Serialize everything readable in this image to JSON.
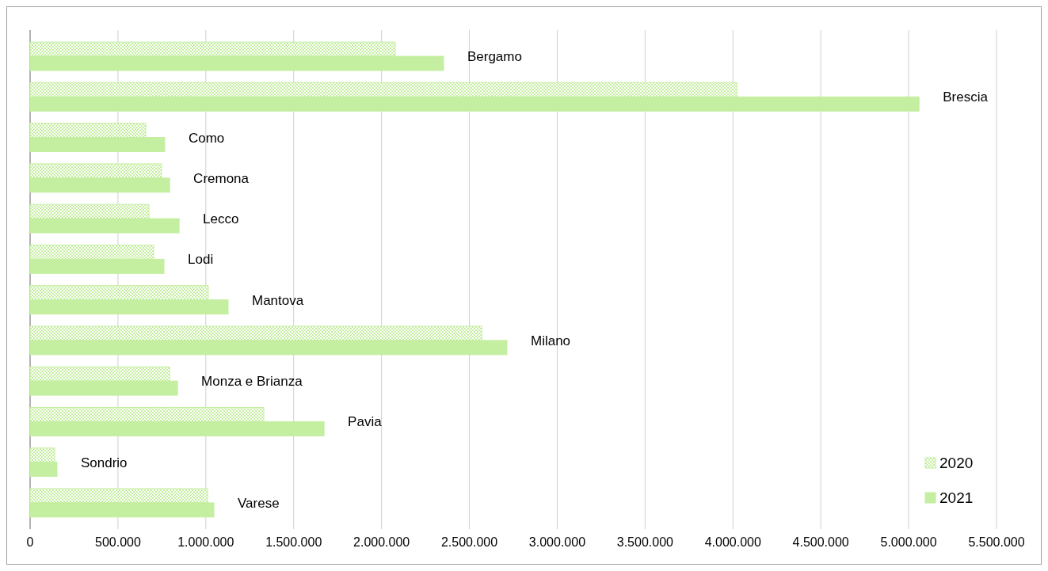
{
  "chart_data": {
    "type": "bar",
    "orientation": "horizontal",
    "categories": [
      "Bergamo",
      "Brescia",
      "Como",
      "Cremona",
      "Lecco",
      "Lodi",
      "Mantova",
      "Milano",
      "Monza e Brianza",
      "Pavia",
      "Sondrio",
      "Varese"
    ],
    "series": [
      {
        "name": "2020",
        "color": "#c4eea0",
        "values": [
          2078000,
          4022000,
          658000,
          748000,
          676000,
          703000,
          1014000,
          2570000,
          794000,
          1330000,
          140000,
          1010000
        ]
      },
      {
        "name": "2021",
        "color": "#c4eea0",
        "values": [
          2353000,
          5059000,
          766000,
          794000,
          848000,
          762000,
          1127000,
          2714000,
          839000,
          1673000,
          153000,
          1046000
        ]
      }
    ],
    "xlim": [
      0,
      5500000
    ],
    "xticks": [
      0,
      {
        "value": 500000,
        "label": "500.000"
      },
      {
        "value": 1000000,
        "label": "1.000.000"
      },
      {
        "value": 1500000,
        "label": "1.500.000"
      },
      {
        "value": 2000000,
        "label": "2.000.000"
      },
      {
        "value": 2500000,
        "label": "2.500.000"
      },
      {
        "value": 3000000,
        "label": "3.000.000"
      },
      {
        "value": 3500000,
        "label": "3.500.000"
      },
      {
        "value": 4000000,
        "label": "4.000.000"
      },
      {
        "value": 4500000,
        "label": "4.500.000"
      },
      {
        "value": 5000000,
        "label": "5.000.000"
      },
      {
        "value": 5500000,
        "label": "5.500.000"
      }
    ],
    "grid": "x",
    "legend": "bottom right"
  }
}
